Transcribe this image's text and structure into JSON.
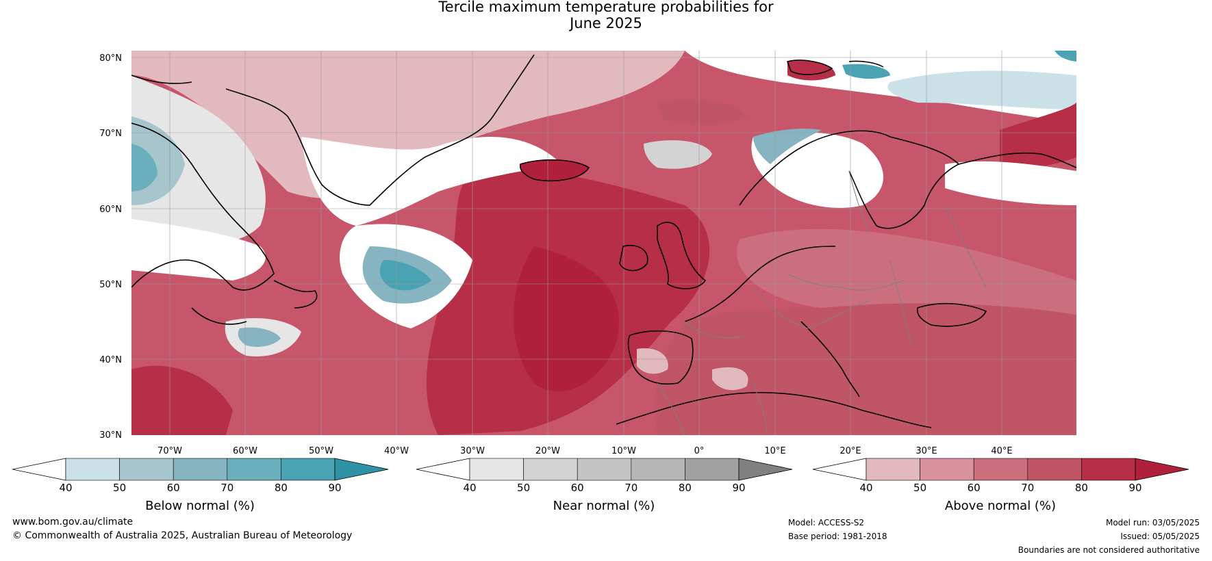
{
  "title": {
    "line1": "Tercile maximum temperature probabilities for",
    "line2": "June 2025"
  },
  "map": {
    "region": "North Atlantic and Europe",
    "lat_labels": [
      "80°N",
      "70°N",
      "60°N",
      "50°N",
      "40°N",
      "30°N"
    ],
    "lon_labels": [
      "70°W",
      "60°W",
      "50°W",
      "40°W",
      "30°W",
      "20°W",
      "10°W",
      "0°",
      "10°E",
      "20°E",
      "30°E",
      "40°E"
    ],
    "colors": {
      "below": [
        "#ffffff",
        "#c9e1e7",
        "#a6c5cc",
        "#86b4c1",
        "#6bafbc",
        "#4aa3b3",
        "#2f92a4"
      ],
      "near": [
        "#ffffff",
        "#e6e6e6",
        "#d3d3d3",
        "#c5c5c5",
        "#b5b6b5",
        "#a2a1a1",
        "#808080"
      ],
      "above": [
        "#ffffff",
        "#e2b9bf",
        "#d9939f",
        "#cb6f7e",
        "#c05566",
        "#b72f46",
        "#b0203b"
      ]
    }
  },
  "legends": {
    "ticks": [
      "40",
      "50",
      "60",
      "70",
      "80",
      "90"
    ],
    "below_label": "Below normal (%)",
    "near_label": "Near normal (%)",
    "above_label": "Above normal (%)"
  },
  "footer": {
    "url": "www.bom.gov.au/climate",
    "copyright": "© Commonwealth of Australia 2025, Australian Bureau of Meteorology",
    "model": "Model: ACCESS-S2",
    "base_period": "Base period: 1981-2018",
    "model_run": "Model run: 03/05/2025",
    "issued": "Issued: 05/05/2025",
    "disclaimer": "Boundaries are not considered authoritative"
  }
}
